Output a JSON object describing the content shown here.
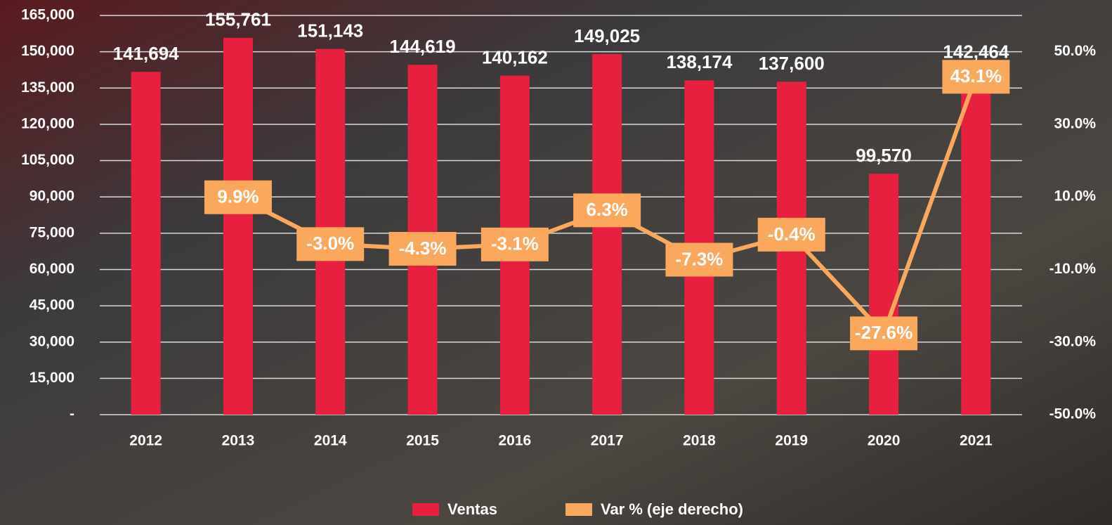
{
  "chart_data": {
    "type": "bar",
    "categories": [
      "2012",
      "2013",
      "2014",
      "2015",
      "2016",
      "2017",
      "2018",
      "2019",
      "2020",
      "2021"
    ],
    "series": [
      {
        "name": "Ventas",
        "type": "bar",
        "color": "#e8203f",
        "values": [
          141694,
          155761,
          151143,
          144619,
          140162,
          149025,
          138174,
          137600,
          99570,
          142464
        ],
        "value_labels": [
          "141,694",
          "155,761",
          "151,143",
          "144,619",
          "140,162",
          "149,025",
          "138,174",
          "137,600",
          "99,570",
          "142,464"
        ]
      },
      {
        "name": "Var % (eje derecho)",
        "type": "line",
        "axis": "y2",
        "color": "#f9a85d",
        "values": [
          null,
          9.9,
          -3.0,
          -4.3,
          -3.1,
          6.3,
          -7.3,
          -0.4,
          -27.6,
          43.1
        ],
        "value_labels": [
          null,
          "9.9%",
          "-3.0%",
          "-4.3%",
          "-3.1%",
          "6.3%",
          "-7.3%",
          "-0.4%",
          "-27.6%",
          "43.1%"
        ]
      }
    ],
    "ylim": [
      0,
      165000
    ],
    "yticks": [
      {
        "value": 0,
        "label": "-"
      },
      {
        "value": 15000,
        "label": "15,000"
      },
      {
        "value": 30000,
        "label": "30,000"
      },
      {
        "value": 45000,
        "label": "45,000"
      },
      {
        "value": 60000,
        "label": "60,000"
      },
      {
        "value": 75000,
        "label": "75,000"
      },
      {
        "value": 90000,
        "label": "90,000"
      },
      {
        "value": 105000,
        "label": "105,000"
      },
      {
        "value": 120000,
        "label": "120,000"
      },
      {
        "value": 135000,
        "label": "135,000"
      },
      {
        "value": 150000,
        "label": "150,000"
      },
      {
        "value": 165000,
        "label": "165,000"
      }
    ],
    "y2lim": [
      -50,
      60
    ],
    "y2ticks": [
      {
        "value": -50,
        "label": "-50.0%"
      },
      {
        "value": -30,
        "label": "-30.0%"
      },
      {
        "value": -10,
        "label": "-10.0%"
      },
      {
        "value": 10,
        "label": "10.0%"
      },
      {
        "value": 30,
        "label": "30.0%"
      },
      {
        "value": 50,
        "label": "50.0%"
      }
    ],
    "grid": true
  }
}
